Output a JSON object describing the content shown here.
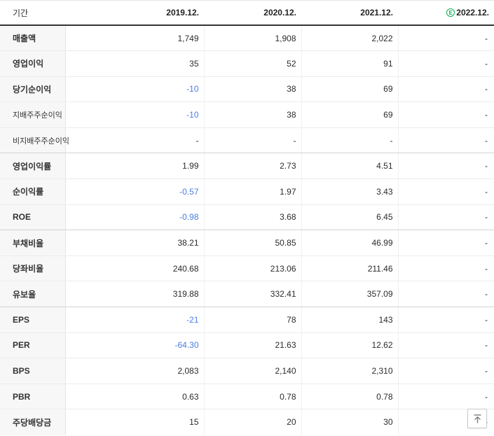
{
  "colors": {
    "negative_value_blue": "#4a7ee3",
    "estimate_green": "#12ad56",
    "header_border_dark": "#343434",
    "label_column_bg": "#f7f7f7"
  },
  "table": {
    "period_label": "기간",
    "columns": [
      "2019.12.",
      "2020.12.",
      "2021.12.",
      "2022.12."
    ],
    "estimate_badge": "E",
    "rows": [
      {
        "label": "매출액",
        "sub": false,
        "group_end": false,
        "values": [
          "1,749",
          "1,908",
          "2,022",
          "-"
        ]
      },
      {
        "label": "영업이익",
        "sub": false,
        "group_end": false,
        "values": [
          "35",
          "52",
          "91",
          "-"
        ]
      },
      {
        "label": "당기순이익",
        "sub": false,
        "group_end": false,
        "values": [
          "-10",
          "38",
          "69",
          "-"
        ]
      },
      {
        "label": "지배주주순이익",
        "sub": true,
        "group_end": false,
        "values": [
          "-10",
          "38",
          "69",
          "-"
        ]
      },
      {
        "label": "비지배주주순이익",
        "sub": true,
        "group_end": true,
        "values": [
          "-",
          "-",
          "-",
          "-"
        ]
      },
      {
        "label": "영업이익률",
        "sub": false,
        "group_end": false,
        "values": [
          "1.99",
          "2.73",
          "4.51",
          "-"
        ]
      },
      {
        "label": "순이익률",
        "sub": false,
        "group_end": false,
        "values": [
          "-0.57",
          "1.97",
          "3.43",
          "-"
        ]
      },
      {
        "label": "ROE",
        "sub": false,
        "group_end": true,
        "values": [
          "-0.98",
          "3.68",
          "6.45",
          "-"
        ]
      },
      {
        "label": "부채비율",
        "sub": false,
        "group_end": false,
        "values": [
          "38.21",
          "50.85",
          "46.99",
          "-"
        ]
      },
      {
        "label": "당좌비율",
        "sub": false,
        "group_end": false,
        "values": [
          "240.68",
          "213.06",
          "211.46",
          "-"
        ]
      },
      {
        "label": "유보율",
        "sub": false,
        "group_end": true,
        "values": [
          "319.88",
          "332.41",
          "357.09",
          "-"
        ]
      },
      {
        "label": "EPS",
        "sub": false,
        "group_end": false,
        "values": [
          "-21",
          "78",
          "143",
          "-"
        ]
      },
      {
        "label": "PER",
        "sub": false,
        "group_end": false,
        "values": [
          "-64.30",
          "21.63",
          "12.62",
          "-"
        ]
      },
      {
        "label": "BPS",
        "sub": false,
        "group_end": false,
        "values": [
          "2,083",
          "2,140",
          "2,310",
          "-"
        ]
      },
      {
        "label": "PBR",
        "sub": false,
        "group_end": false,
        "values": [
          "0.63",
          "0.78",
          "0.78",
          "-"
        ]
      },
      {
        "label": "주당배당금",
        "sub": false,
        "group_end": false,
        "values": [
          "15",
          "20",
          "30",
          "-"
        ]
      }
    ]
  },
  "scroll_top_button": {
    "icon": "scroll-to-top-arrow"
  }
}
